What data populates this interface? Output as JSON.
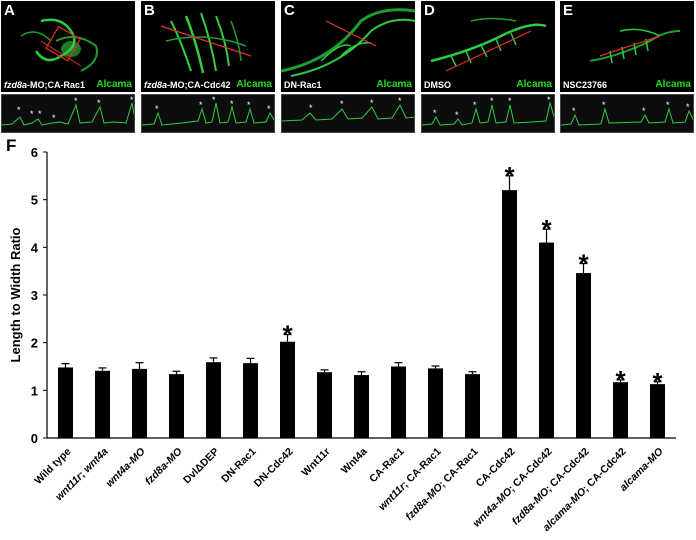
{
  "panels": [
    {
      "letter": "A",
      "condition_italic": "fzd8a",
      "condition_rest": "-MO;CA-Rac1",
      "stain": "Alcama"
    },
    {
      "letter": "B",
      "condition_italic": "fzd8a",
      "condition_rest": "-MO;CA-Cdc42",
      "stain": "Alcama"
    },
    {
      "letter": "C",
      "condition_italic": "",
      "condition_rest": "DN-Rac1",
      "stain": "Alcama"
    },
    {
      "letter": "D",
      "condition_italic": "",
      "condition_rest": "DMSO",
      "stain": "Alcama"
    },
    {
      "letter": "E",
      "condition_italic": "",
      "condition_rest": "NSC23766",
      "stain": "Alcama"
    }
  ],
  "figure_label": "F",
  "colors": {
    "bar": "#000000",
    "stain": "#22dd22",
    "line": "#e03030",
    "cells": "#2ecc40"
  },
  "chart_data": {
    "type": "bar",
    "ylabel": "Length to Width Ratio",
    "xlabel": "",
    "ylim": [
      0,
      6
    ],
    "yticks": [
      0,
      1,
      2,
      3,
      4,
      5,
      6
    ],
    "categories": [
      "Wild type",
      "wnt11r; wnt4a",
      "wnt4a-MO",
      "fzd8a-MO",
      "DvlΔDEP",
      "DN-Rac1",
      "DN-Cdc42",
      "Wnt11r",
      "Wnt4a",
      "CA-Rac1",
      "wnt11r; CA-Rac1",
      "fzd8a-MO; CA-Rac1",
      "CA-Cdc42",
      "wnt4a-MO; CA-Cdc42",
      "fzd8a-MO; CA-Cdc42",
      "alcama-MO; CA-Cdc42",
      "alcama-MO"
    ],
    "values": [
      1.48,
      1.41,
      1.45,
      1.34,
      1.59,
      1.57,
      2.02,
      1.38,
      1.32,
      1.5,
      1.46,
      1.34,
      5.2,
      4.1,
      3.46,
      1.17,
      1.13
    ],
    "errors": [
      0.08,
      0.06,
      0.13,
      0.06,
      0.09,
      0.1,
      0.15,
      0.05,
      0.07,
      0.08,
      0.05,
      0.05,
      0.3,
      0.28,
      0.2,
      0.05,
      0.05
    ],
    "significant": [
      false,
      false,
      false,
      false,
      false,
      false,
      true,
      false,
      false,
      false,
      false,
      false,
      true,
      true,
      true,
      true,
      true
    ],
    "significance_marker": "*",
    "grid": false,
    "legend": "none"
  }
}
